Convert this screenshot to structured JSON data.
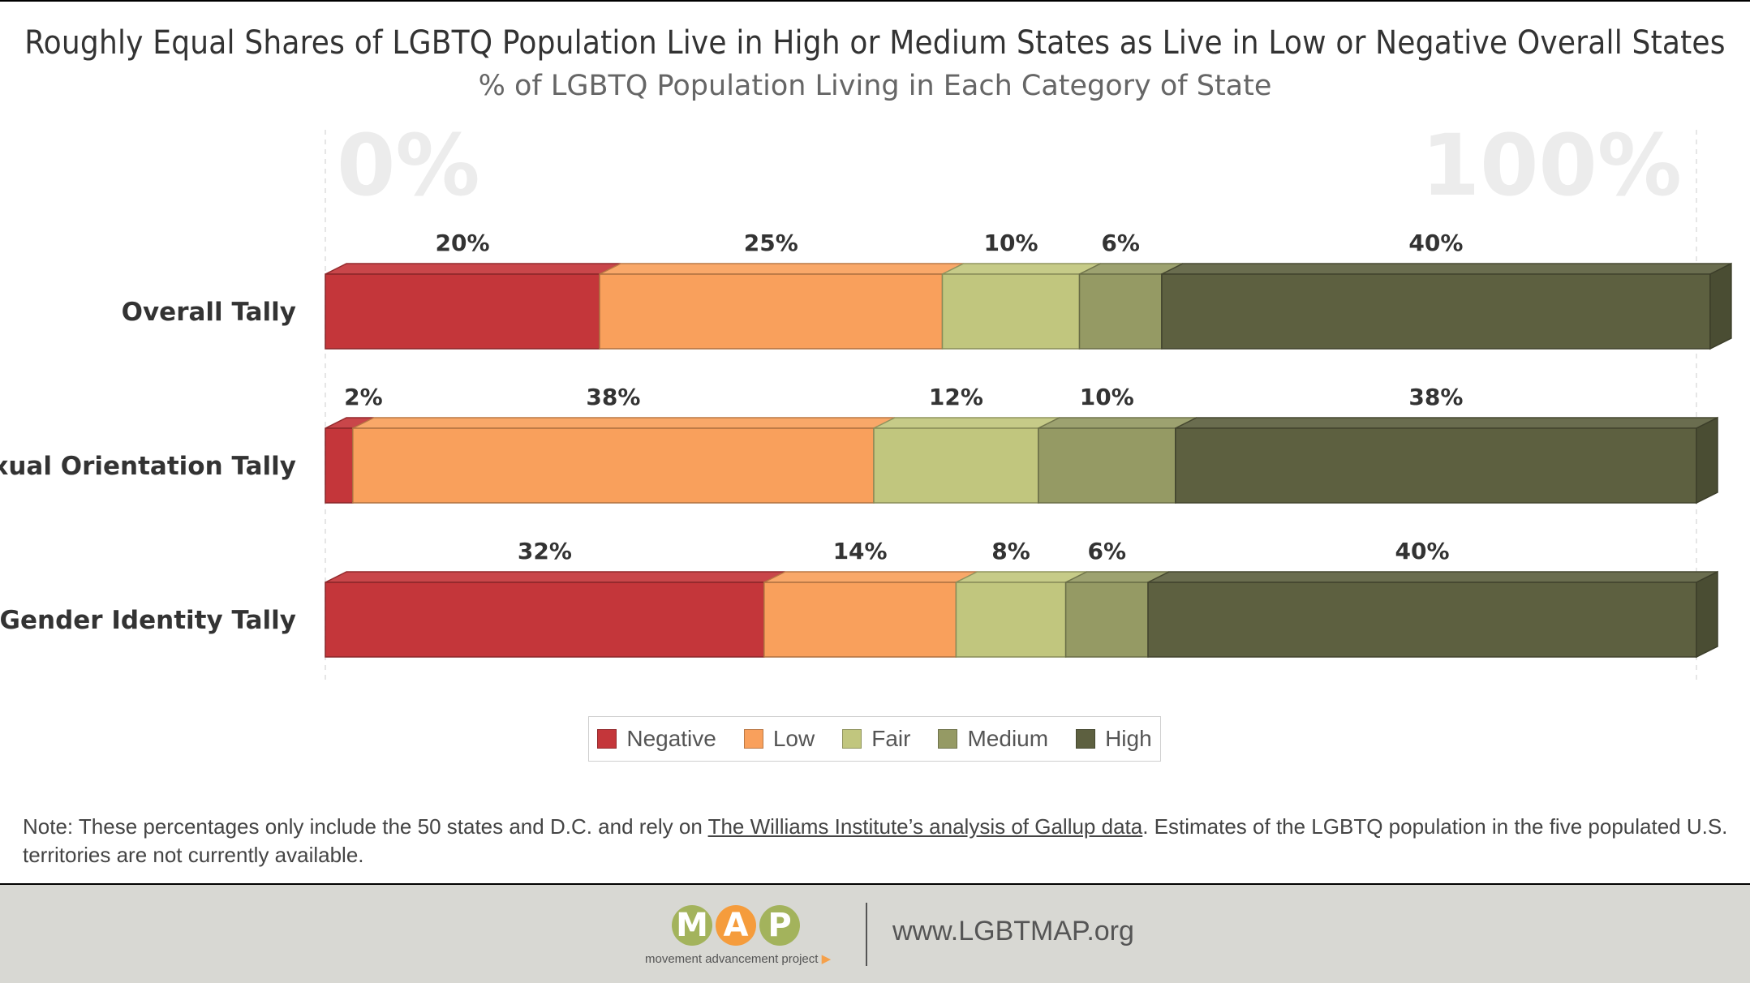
{
  "header": {
    "title": "Roughly Equal Shares of LGBTQ Population Live in High or Medium States as Live in Low or Negative Overall States",
    "subtitle": "% of LGBTQ Population Living in Each Category of State"
  },
  "chart_data": {
    "type": "bar",
    "orientation": "horizontal",
    "stacked": true,
    "title": "Roughly Equal Shares of LGBTQ Population Live in High or Medium States as Live in Low or Negative Overall States",
    "subtitle": "% of LGBTQ Population Living in Each Category of State",
    "categories": [
      "Overall Tally",
      "Sexual Orientation Tally",
      "Gender Identity Tally"
    ],
    "axis_labels": [
      "0%",
      "100%"
    ],
    "xlim": [
      0,
      100
    ],
    "legend_position": "bottom",
    "grid": false,
    "series": [
      {
        "name": "Negative",
        "color": "#c4363a",
        "values": [
          20,
          2,
          32
        ],
        "labels": [
          "20%",
          "2%",
          "32%"
        ]
      },
      {
        "name": "Low",
        "color": "#f9a05c",
        "values": [
          25,
          38,
          14
        ],
        "labels": [
          "25%",
          "38%",
          "14%"
        ]
      },
      {
        "name": "Fair",
        "color": "#c1c67e",
        "values": [
          10,
          12,
          8
        ],
        "labels": [
          "10%",
          "12%",
          "8%"
        ]
      },
      {
        "name": "Medium",
        "color": "#959a64",
        "values": [
          6,
          10,
          6
        ],
        "labels": [
          "6%",
          "10%",
          "6%"
        ]
      },
      {
        "name": "High",
        "color": "#5d6040",
        "values": [
          40,
          38,
          40
        ],
        "labels": [
          "40%",
          "38%",
          "40%"
        ]
      }
    ]
  },
  "legend": {
    "items": [
      {
        "label": "Negative",
        "color": "#c4363a"
      },
      {
        "label": "Low",
        "color": "#f9a05c"
      },
      {
        "label": "Fair",
        "color": "#c1c67e"
      },
      {
        "label": "Medium",
        "color": "#959a64"
      },
      {
        "label": "High",
        "color": "#5d6040"
      }
    ]
  },
  "note": {
    "prefix": "Note: These percentages only include the 50 states and D.C. and rely on ",
    "link": "The Williams Institute’s analysis of Gallup data",
    "suffix": ". Estimates of the LGBTQ population in the five populated U.S. territories are not currently available."
  },
  "footer": {
    "logo_letters": [
      {
        "char": "M",
        "color": "#a3b35c"
      },
      {
        "char": "A",
        "color": "#f59c3c"
      },
      {
        "char": "P",
        "color": "#a3b35c"
      }
    ],
    "logo_tagline": "movement advancement project",
    "url": "www.LGBTMAP.org"
  }
}
